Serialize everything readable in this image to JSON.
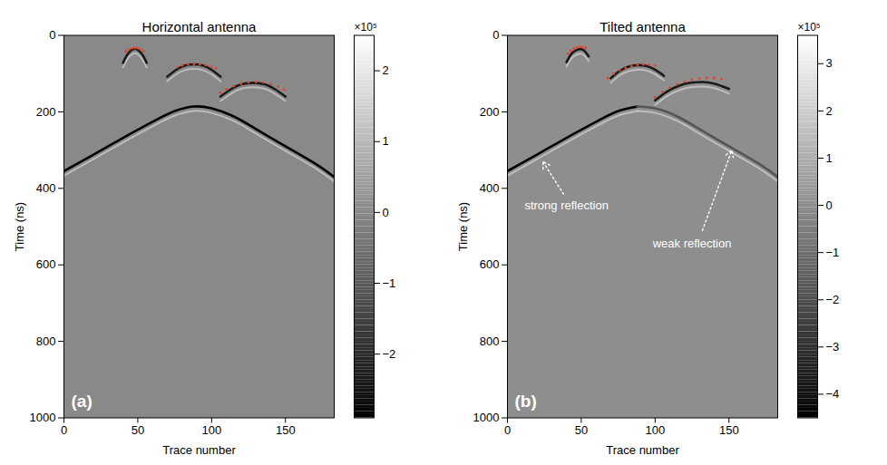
{
  "chart_data": [
    {
      "type": "line",
      "title": "Horizontal antenna",
      "x_label": "Trace number",
      "y_label": "Time (ns)",
      "xlim": [
        0,
        183
      ],
      "xticks": [
        0,
        50,
        100,
        150
      ],
      "ylim": [
        1000,
        0
      ],
      "yticks": [
        0,
        200,
        400,
        600,
        800,
        1000
      ],
      "panel_label": "(a)",
      "colorbar": {
        "range": [
          -290000,
          250000
        ],
        "ticks": [
          {
            "value": -200000,
            "label": "−2"
          },
          {
            "value": -100000,
            "label": "−1"
          },
          {
            "value": 0,
            "label": "0"
          },
          {
            "value": 100000,
            "label": "1"
          },
          {
            "value": 200000,
            "label": "2"
          }
        ],
        "label": "×10⁵"
      },
      "annotations": [],
      "series": [
        {
          "type": "line",
          "color": "#1a1a1a",
          "line_style": "solid",
          "x": [
            40,
            43,
            46,
            48,
            50,
            53,
            56
          ],
          "values": [
            72,
            50,
            38,
            35,
            38,
            50,
            72
          ]
        },
        {
          "type": "line",
          "color": "#1a1a1a",
          "line_style": "solid",
          "x": [
            70,
            76,
            82,
            88,
            94,
            100,
            106
          ],
          "values": [
            108,
            90,
            79,
            76,
            79,
            90,
            108
          ]
        },
        {
          "type": "line",
          "color": "#1a1a1a",
          "line_style": "solid",
          "x": [
            106,
            113,
            120,
            128,
            136,
            143,
            150
          ],
          "values": [
            160,
            141,
            128,
            124,
            128,
            141,
            160
          ]
        },
        {
          "type": "line",
          "color": "#000000",
          "line_style": "solid",
          "x": [
            0,
            20,
            40,
            60,
            75,
            88,
            100,
            115,
            130,
            150,
            170,
            183
          ],
          "values": [
            355,
            312,
            268,
            226,
            198,
            186,
            191,
            212,
            245,
            290,
            335,
            370
          ]
        },
        {
          "type": "scatter",
          "color": "#e8412c",
          "marker": "dot",
          "x": [
            42,
            44,
            46,
            48,
            50,
            52,
            54
          ],
          "values": [
            42,
            37,
            34,
            33,
            34,
            37,
            42
          ]
        },
        {
          "type": "scatter",
          "color": "#e8412c",
          "marker": "dot",
          "x": [
            77,
            80,
            84,
            88,
            92,
            96,
            100,
            103
          ],
          "values": [
            83,
            79,
            76,
            75,
            76,
            78,
            82,
            86
          ]
        },
        {
          "type": "scatter",
          "color": "#e8412c",
          "marker": "dot",
          "x": [
            106,
            110,
            115,
            120,
            125,
            130,
            135,
            140,
            145,
            149
          ],
          "values": [
            150,
            141,
            133,
            127,
            123,
            122,
            123,
            127,
            134,
            142
          ]
        }
      ]
    },
    {
      "type": "line",
      "title": "Tilted antenna",
      "x_label": "Trace number",
      "y_label": "Time (ns)",
      "xlim": [
        0,
        183
      ],
      "xticks": [
        0,
        50,
        100,
        150
      ],
      "ylim": [
        1000,
        0
      ],
      "yticks": [
        0,
        200,
        400,
        600,
        800,
        1000
      ],
      "panel_label": "(b)",
      "colorbar": {
        "range": [
          -450000,
          360000
        ],
        "ticks": [
          {
            "value": -400000,
            "label": "−4"
          },
          {
            "value": -300000,
            "label": "−3"
          },
          {
            "value": -200000,
            "label": "−2"
          },
          {
            "value": -100000,
            "label": "−1"
          },
          {
            "value": 0,
            "label": "0"
          },
          {
            "value": 100000,
            "label": "1"
          },
          {
            "value": 200000,
            "label": "2"
          },
          {
            "value": 300000,
            "label": "3"
          }
        ],
        "label": "×10⁵"
      },
      "annotations": [
        {
          "text": "strong reflection",
          "x": 40,
          "y": 445,
          "arrow_from": [
            38,
            415
          ],
          "arrow_to": [
            24,
            330
          ]
        },
        {
          "text": "weak reflection",
          "x": 125,
          "y": 545,
          "arrow_from": [
            132,
            510
          ],
          "arrow_to": [
            152,
            300
          ]
        }
      ],
      "series": [
        {
          "type": "line",
          "color": "#1a1a1a",
          "line_style": "solid",
          "x": [
            40,
            43,
            46,
            49,
            52,
            55
          ],
          "values": [
            70,
            50,
            40,
            36,
            40,
            55
          ]
        },
        {
          "type": "line",
          "color": "#1a1a1a",
          "line_style": "solid",
          "x": [
            70,
            76,
            82,
            88,
            94,
            100,
            106
          ],
          "values": [
            112,
            93,
            82,
            78,
            80,
            90,
            106
          ]
        },
        {
          "type": "line",
          "color": "#1a1a1a",
          "line_style": "solid",
          "x": [
            100,
            108,
            116,
            124,
            132,
            140,
            150
          ],
          "values": [
            170,
            147,
            132,
            124,
            122,
            126,
            140
          ]
        },
        {
          "type": "line",
          "color": "#000000",
          "line_style": "solid",
          "x": [
            0,
            20,
            40,
            60,
            75,
            88
          ],
          "values": [
            355,
            312,
            268,
            226,
            198,
            186
          ]
        },
        {
          "type": "line",
          "color": "#555555",
          "line_style": "solid",
          "x": [
            88,
            100,
            115,
            130,
            150,
            170,
            183
          ],
          "values": [
            186,
            191,
            212,
            245,
            290,
            335,
            370
          ]
        },
        {
          "type": "scatter",
          "color": "#e8412c",
          "marker": "dot",
          "x": [
            41,
            43,
            45,
            47,
            49,
            51,
            53
          ],
          "values": [
            48,
            40,
            34,
            31,
            30,
            31,
            33
          ]
        },
        {
          "type": "scatter",
          "color": "#e8412c",
          "marker": "dot",
          "x": [
            68,
            72,
            76,
            80,
            84,
            88,
            92,
            96,
            100
          ],
          "values": [
            112,
            100,
            91,
            85,
            80,
            77,
            76,
            77,
            79
          ]
        },
        {
          "type": "scatter",
          "color": "#e8412c",
          "marker": "dot",
          "x": [
            100,
            105,
            110,
            115,
            120,
            125,
            130,
            135,
            140,
            145
          ],
          "values": [
            162,
            148,
            137,
            128,
            121,
            116,
            113,
            112,
            112,
            114
          ]
        }
      ]
    }
  ]
}
